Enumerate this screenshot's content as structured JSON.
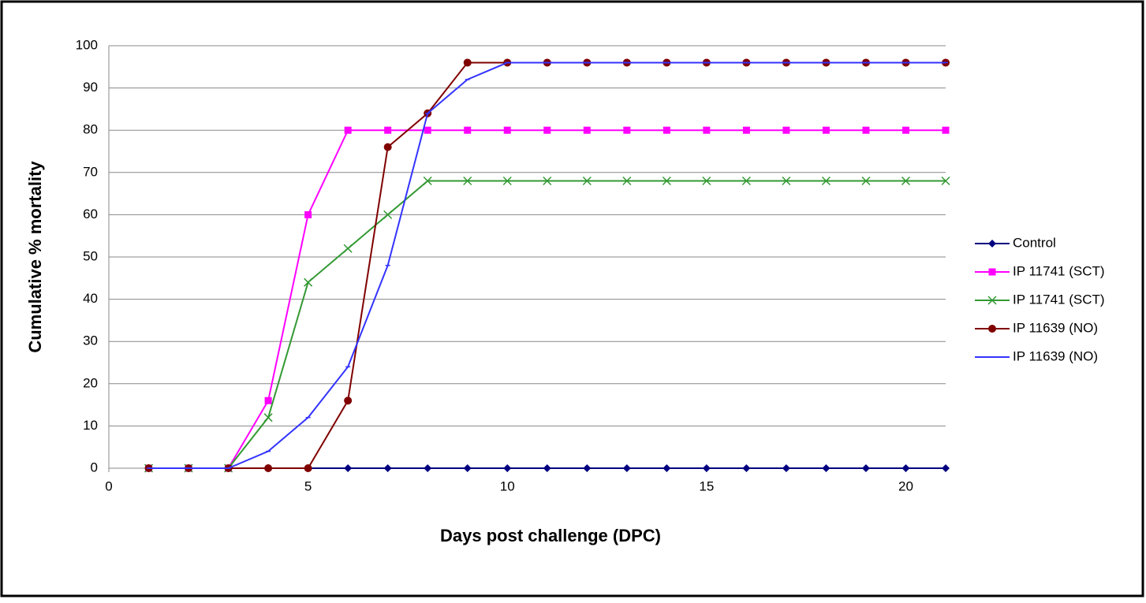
{
  "chart_data": {
    "type": "line",
    "x_label": "Days post challenge (DPC)",
    "y_label": "Cumulative % mortality",
    "x": [
      1,
      2,
      3,
      4,
      5,
      6,
      7,
      8,
      9,
      10,
      11,
      12,
      13,
      14,
      15,
      16,
      17,
      18,
      19,
      20,
      21
    ],
    "series": [
      {
        "name": "Control",
        "color": "#000080",
        "marker": "diamond",
        "values": [
          0,
          0,
          0,
          0,
          0,
          0,
          0,
          0,
          0,
          0,
          0,
          0,
          0,
          0,
          0,
          0,
          0,
          0,
          0,
          0,
          0
        ]
      },
      {
        "name": "IP 11741 (SCT)",
        "color": "#ff00ff",
        "marker": "square",
        "values": [
          0,
          0,
          0,
          16,
          60,
          80,
          80,
          80,
          80,
          80,
          80,
          80,
          80,
          80,
          80,
          80,
          80,
          80,
          80,
          80,
          80
        ]
      },
      {
        "name": "IP 11741 (SCT)",
        "color": "#339933",
        "marker": "x",
        "values": [
          0,
          0,
          0,
          12,
          44,
          52,
          60,
          68,
          68,
          68,
          68,
          68,
          68,
          68,
          68,
          68,
          68,
          68,
          68,
          68,
          68
        ]
      },
      {
        "name": "IP 11639 (NO)",
        "color": "#800000",
        "marker": "circle",
        "values": [
          0,
          0,
          0,
          0,
          0,
          16,
          76,
          84,
          96,
          96,
          96,
          96,
          96,
          96,
          96,
          96,
          96,
          96,
          96,
          96,
          96
        ]
      },
      {
        "name": "IP 11639 (NO)",
        "color": "#3333ff",
        "marker": "none",
        "values": [
          0,
          0,
          0,
          4,
          12,
          24,
          48,
          84,
          92,
          96,
          96,
          96,
          96,
          96,
          96,
          96,
          96,
          96,
          96,
          96,
          96
        ]
      }
    ],
    "xlim": [
      0,
      21
    ],
    "xticks": [
      0,
      5,
      10,
      15,
      20
    ],
    "ylim": [
      0,
      100
    ],
    "yticks": [
      0,
      10,
      20,
      30,
      40,
      50,
      60,
      70,
      80,
      90,
      100
    ],
    "grid": true,
    "legend": "right"
  }
}
